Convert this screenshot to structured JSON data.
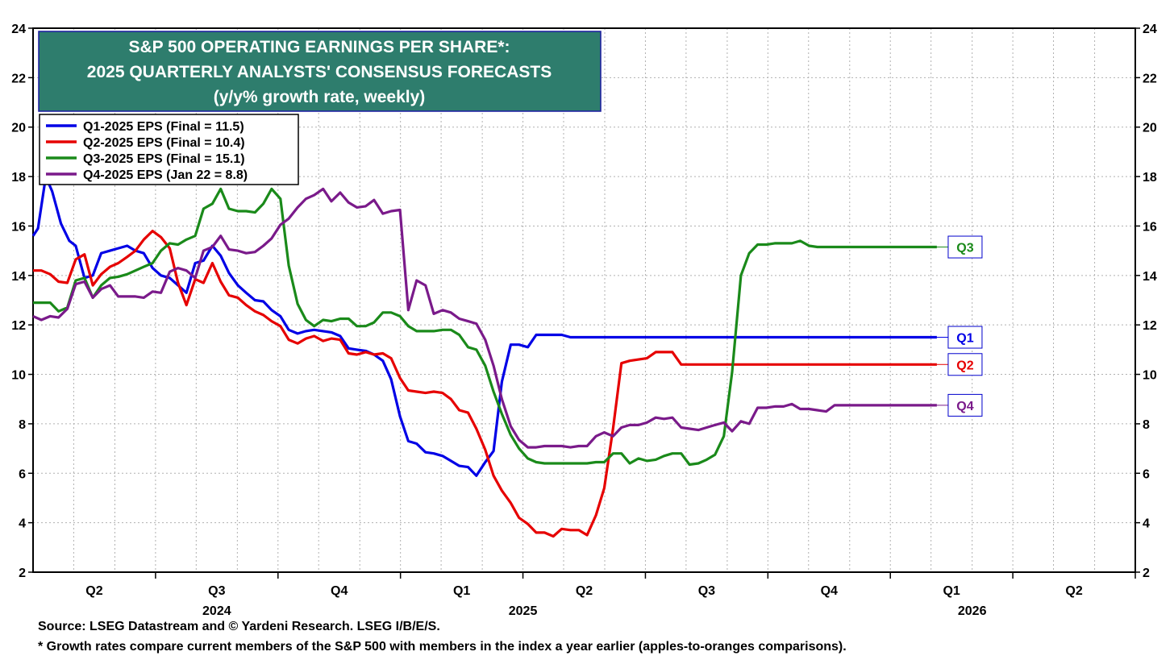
{
  "chart_data": {
    "type": "line",
    "title_lines": [
      "S&P 500 OPERATING EARNINGS PER SHARE*:",
      "2025 QUARTERLY ANALYSTS' CONSENSUS FORECASTS",
      "(y/y% growth rate, weekly)"
    ],
    "ylim": [
      2,
      24
    ],
    "yticks": [
      2,
      4,
      6,
      8,
      10,
      12,
      14,
      16,
      18,
      20,
      22,
      24
    ],
    "xlim": [
      2024.0,
      2026.25
    ],
    "x_quarter_labels": [
      {
        "label": "Q2",
        "x": 2024.125
      },
      {
        "label": "Q3",
        "x": 2024.375
      },
      {
        "label": "Q4",
        "x": 2024.625
      },
      {
        "label": "Q1",
        "x": 2024.875
      },
      {
        "label": "Q2",
        "x": 2025.125
      },
      {
        "label": "Q3",
        "x": 2025.375
      },
      {
        "label": "Q4",
        "x": 2025.625
      },
      {
        "label": "Q1",
        "x": 2025.875
      },
      {
        "label": "Q2",
        "x": 2026.125
      }
    ],
    "x_year_labels": [
      {
        "label": "2024",
        "x": 2024.375
      },
      {
        "label": "2025",
        "x": 2025.0
      },
      {
        "label": "2026",
        "x": 2025.917
      }
    ],
    "x_quarter_ticks": [
      2024.25,
      2024.5,
      2024.75,
      2025.0,
      2025.25,
      2025.5,
      2025.75,
      2026.0,
      2026.25
    ],
    "x_month_grid": [
      2024.083,
      2024.167,
      2024.333,
      2024.417,
      2024.583,
      2024.667,
      2024.833,
      2024.917,
      2025.083,
      2025.167,
      2025.333,
      2025.417,
      2025.583,
      2025.667,
      2025.833,
      2025.917,
      2026.083,
      2026.167
    ],
    "series": [
      {
        "name": "Q1-2025 EPS (Final = 11.5)",
        "short": "Q1",
        "color": "#0000e6",
        "x": [
          2024.0,
          2024.01,
          2024.026,
          2024.039,
          2024.057,
          2024.074,
          2024.087,
          2024.105,
          2024.122,
          2024.139,
          2024.157,
          2024.174,
          2024.192,
          2024.209,
          2024.226,
          2024.244,
          2024.261,
          2024.279,
          2024.296,
          2024.313,
          2024.331,
          2024.348,
          2024.366,
          2024.383,
          2024.4,
          2024.418,
          2024.435,
          2024.453,
          2024.47,
          2024.487,
          2024.505,
          2024.522,
          2024.54,
          2024.557,
          2024.574,
          2024.592,
          2024.609,
          2024.627,
          2024.644,
          2024.661,
          2024.679,
          2024.696,
          2024.714,
          2024.731,
          2024.749,
          2024.766,
          2024.783,
          2024.801,
          2024.818,
          2024.836,
          2024.853,
          2024.87,
          2024.888,
          2024.905,
          2024.923,
          2024.94,
          2024.957,
          2024.975,
          2024.992,
          2025.01,
          2025.027,
          2025.044,
          2025.062,
          2025.079,
          2025.097,
          2025.114,
          2025.131,
          2025.149,
          2025.166,
          2025.184,
          2025.201,
          2025.218,
          2025.236,
          2025.253,
          2025.271,
          2025.288,
          2025.305,
          2025.323,
          2025.34,
          2025.358,
          2025.375,
          2025.392,
          2025.41,
          2025.427,
          2025.445,
          2025.462,
          2025.479,
          2025.497,
          2025.514,
          2025.532,
          2025.549,
          2025.566,
          2025.584,
          2025.601,
          2025.619,
          2025.636,
          2025.653,
          2025.671,
          2025.688,
          2025.706,
          2025.723,
          2025.74,
          2025.758,
          2025.775,
          2025.793,
          2025.81,
          2025.827,
          2025.845
        ],
        "values": [
          15.6,
          15.9,
          18.0,
          17.4,
          16.1,
          15.4,
          15.2,
          13.9,
          14.0,
          14.9,
          15.0,
          15.1,
          15.2,
          15.0,
          14.9,
          14.3,
          14.0,
          13.9,
          13.6,
          13.3,
          14.5,
          14.6,
          15.2,
          14.8,
          14.1,
          13.6,
          13.3,
          13.0,
          12.95,
          12.6,
          12.35,
          11.8,
          11.65,
          11.75,
          11.8,
          11.75,
          11.7,
          11.55,
          11.05,
          11.0,
          10.95,
          10.8,
          10.55,
          9.8,
          8.3,
          7.3,
          7.2,
          6.85,
          6.8,
          6.7,
          6.5,
          6.3,
          6.25,
          5.9,
          6.45,
          6.9,
          9.7,
          11.2,
          11.2,
          11.1,
          11.6,
          11.6,
          11.6,
          11.6,
          11.5,
          11.5,
          11.5,
          11.5,
          11.5,
          11.5,
          11.5,
          11.5,
          11.5,
          11.5,
          11.5,
          11.5,
          11.5,
          11.5,
          11.5,
          11.5,
          11.5,
          11.5,
          11.5,
          11.5,
          11.5,
          11.5,
          11.5,
          11.5,
          11.5,
          11.5,
          11.5,
          11.5,
          11.5,
          11.5,
          11.5,
          11.5,
          11.5,
          11.5,
          11.5,
          11.5,
          11.5,
          11.5,
          11.5,
          11.5,
          11.5,
          11.5,
          11.5,
          11.5
        ]
      },
      {
        "name": "Q2-2025 EPS (Final = 10.4)",
        "short": "Q2",
        "color": "#e60000",
        "x": [
          2024.0,
          2024.017,
          2024.035,
          2024.052,
          2024.07,
          2024.087,
          2024.105,
          2024.122,
          2024.139,
          2024.157,
          2024.174,
          2024.192,
          2024.209,
          2024.226,
          2024.244,
          2024.261,
          2024.279,
          2024.296,
          2024.313,
          2024.331,
          2024.348,
          2024.366,
          2024.383,
          2024.4,
          2024.418,
          2024.435,
          2024.453,
          2024.47,
          2024.487,
          2024.505,
          2024.522,
          2024.54,
          2024.557,
          2024.574,
          2024.592,
          2024.609,
          2024.627,
          2024.644,
          2024.661,
          2024.679,
          2024.696,
          2024.714,
          2024.731,
          2024.749,
          2024.766,
          2024.783,
          2024.801,
          2024.818,
          2024.836,
          2024.853,
          2024.87,
          2024.888,
          2024.905,
          2024.923,
          2024.94,
          2024.957,
          2024.975,
          2024.992,
          2025.01,
          2025.027,
          2025.044,
          2025.062,
          2025.079,
          2025.097,
          2025.114,
          2025.131,
          2025.149,
          2025.166,
          2025.184,
          2025.201,
          2025.218,
          2025.236,
          2025.253,
          2025.271,
          2025.288,
          2025.305,
          2025.323,
          2025.34,
          2025.358,
          2025.375,
          2025.392,
          2025.41,
          2025.427,
          2025.445,
          2025.462,
          2025.479,
          2025.497,
          2025.514,
          2025.532,
          2025.549,
          2025.566,
          2025.584,
          2025.601,
          2025.619,
          2025.636,
          2025.653,
          2025.671,
          2025.688,
          2025.706,
          2025.723,
          2025.74,
          2025.758,
          2025.775,
          2025.793,
          2025.81,
          2025.827,
          2025.845
        ],
        "values": [
          14.2,
          14.2,
          14.05,
          13.75,
          13.7,
          14.65,
          14.85,
          13.6,
          14.05,
          14.35,
          14.5,
          14.75,
          15.0,
          15.45,
          15.8,
          15.55,
          15.1,
          13.7,
          12.8,
          13.85,
          13.7,
          14.5,
          13.75,
          13.2,
          13.1,
          12.8,
          12.55,
          12.4,
          12.15,
          11.95,
          11.4,
          11.25,
          11.45,
          11.55,
          11.35,
          11.45,
          11.4,
          10.85,
          10.8,
          10.9,
          10.8,
          10.85,
          10.65,
          9.85,
          9.35,
          9.3,
          9.25,
          9.3,
          9.25,
          9.0,
          8.55,
          8.45,
          7.8,
          6.95,
          5.9,
          5.3,
          4.8,
          4.2,
          3.95,
          3.6,
          3.6,
          3.45,
          3.75,
          3.7,
          3.7,
          3.5,
          4.3,
          5.4,
          7.8,
          10.45,
          10.55,
          10.6,
          10.65,
          10.9,
          10.9,
          10.9,
          10.4,
          10.4,
          10.4,
          10.4,
          10.4,
          10.4,
          10.4,
          10.4,
          10.4,
          10.4,
          10.4,
          10.4,
          10.4,
          10.4,
          10.4,
          10.4,
          10.4,
          10.4,
          10.4,
          10.4,
          10.4,
          10.4,
          10.4,
          10.4,
          10.4,
          10.4,
          10.4,
          10.4,
          10.4,
          10.4,
          10.4
        ]
      },
      {
        "name": "Q3-2025 EPS (Final = 15.1)",
        "short": "Q3",
        "color": "#1a8a1a",
        "x": [
          2024.0,
          2024.017,
          2024.035,
          2024.052,
          2024.07,
          2024.087,
          2024.105,
          2024.122,
          2024.139,
          2024.157,
          2024.174,
          2024.192,
          2024.209,
          2024.226,
          2024.244,
          2024.261,
          2024.279,
          2024.296,
          2024.313,
          2024.331,
          2024.348,
          2024.366,
          2024.383,
          2024.4,
          2024.418,
          2024.435,
          2024.453,
          2024.47,
          2024.487,
          2024.505,
          2024.522,
          2024.54,
          2024.557,
          2024.574,
          2024.592,
          2024.609,
          2024.627,
          2024.644,
          2024.661,
          2024.679,
          2024.696,
          2024.714,
          2024.731,
          2024.749,
          2024.766,
          2024.783,
          2024.801,
          2024.818,
          2024.836,
          2024.853,
          2024.87,
          2024.888,
          2024.905,
          2024.923,
          2024.94,
          2024.957,
          2024.975,
          2024.992,
          2025.01,
          2025.027,
          2025.044,
          2025.062,
          2025.079,
          2025.097,
          2025.114,
          2025.131,
          2025.149,
          2025.166,
          2025.184,
          2025.201,
          2025.218,
          2025.236,
          2025.253,
          2025.271,
          2025.288,
          2025.305,
          2025.323,
          2025.34,
          2025.358,
          2025.375,
          2025.392,
          2025.41,
          2025.427,
          2025.445,
          2025.462,
          2025.479,
          2025.497,
          2025.514,
          2025.532,
          2025.549,
          2025.566,
          2025.584,
          2025.601,
          2025.619,
          2025.636,
          2025.653,
          2025.671,
          2025.688,
          2025.706,
          2025.723,
          2025.74,
          2025.758,
          2025.775,
          2025.793,
          2025.81,
          2025.827,
          2025.845
        ],
        "values": [
          12.9,
          12.9,
          12.9,
          12.55,
          12.7,
          13.8,
          13.9,
          13.1,
          13.6,
          13.9,
          13.95,
          14.05,
          14.2,
          14.35,
          14.5,
          15.0,
          15.3,
          15.25,
          15.45,
          15.6,
          16.7,
          16.9,
          17.5,
          16.7,
          16.6,
          16.6,
          16.55,
          16.9,
          17.5,
          17.1,
          14.4,
          12.85,
          12.2,
          11.95,
          12.2,
          12.15,
          12.25,
          12.25,
          11.95,
          11.95,
          12.1,
          12.5,
          12.5,
          12.35,
          11.95,
          11.75,
          11.75,
          11.75,
          11.8,
          11.8,
          11.6,
          11.1,
          11.0,
          10.35,
          9.3,
          8.4,
          7.55,
          7.0,
          6.6,
          6.45,
          6.4,
          6.4,
          6.4,
          6.4,
          6.4,
          6.4,
          6.45,
          6.45,
          6.8,
          6.8,
          6.4,
          6.6,
          6.5,
          6.55,
          6.7,
          6.8,
          6.8,
          6.35,
          6.4,
          6.55,
          6.75,
          7.5,
          10.1,
          14.0,
          14.9,
          15.25,
          15.25,
          15.3,
          15.3,
          15.3,
          15.4,
          15.2,
          15.15,
          15.15,
          15.15,
          15.15,
          15.15,
          15.15,
          15.15,
          15.15,
          15.15,
          15.15,
          15.15,
          15.15,
          15.15,
          15.15,
          15.15
        ]
      },
      {
        "name": "Q4-2025 EPS (Jan 22 = 8.8)",
        "short": "Q4",
        "color": "#7a1a8a",
        "x": [
          2024.0,
          2024.017,
          2024.035,
          2024.052,
          2024.07,
          2024.087,
          2024.105,
          2024.122,
          2024.139,
          2024.157,
          2024.174,
          2024.192,
          2024.209,
          2024.226,
          2024.244,
          2024.261,
          2024.279,
          2024.296,
          2024.313,
          2024.331,
          2024.348,
          2024.366,
          2024.383,
          2024.4,
          2024.418,
          2024.435,
          2024.453,
          2024.47,
          2024.487,
          2024.505,
          2024.522,
          2024.54,
          2024.557,
          2024.574,
          2024.592,
          2024.609,
          2024.627,
          2024.644,
          2024.661,
          2024.679,
          2024.696,
          2024.714,
          2024.731,
          2024.749,
          2024.766,
          2024.783,
          2024.801,
          2024.818,
          2024.836,
          2024.853,
          2024.87,
          2024.888,
          2024.905,
          2024.923,
          2024.94,
          2024.957,
          2024.975,
          2024.992,
          2025.01,
          2025.027,
          2025.044,
          2025.062,
          2025.079,
          2025.097,
          2025.114,
          2025.131,
          2025.149,
          2025.166,
          2025.184,
          2025.201,
          2025.218,
          2025.236,
          2025.253,
          2025.271,
          2025.288,
          2025.305,
          2025.323,
          2025.34,
          2025.358,
          2025.375,
          2025.392,
          2025.41,
          2025.427,
          2025.445,
          2025.462,
          2025.479,
          2025.497,
          2025.514,
          2025.532,
          2025.549,
          2025.566,
          2025.584,
          2025.601,
          2025.619,
          2025.636,
          2025.653,
          2025.671,
          2025.688,
          2025.706,
          2025.723,
          2025.74,
          2025.758,
          2025.775,
          2025.793,
          2025.81,
          2025.827,
          2025.845
        ],
        "values": [
          12.35,
          12.2,
          12.35,
          12.3,
          12.65,
          13.65,
          13.75,
          13.1,
          13.45,
          13.6,
          13.15,
          13.15,
          13.15,
          13.1,
          13.35,
          13.3,
          14.15,
          14.3,
          14.2,
          13.9,
          15.0,
          15.15,
          15.6,
          15.05,
          15.0,
          14.9,
          14.95,
          15.2,
          15.5,
          16.05,
          16.3,
          16.75,
          17.1,
          17.25,
          17.5,
          17.0,
          17.35,
          16.95,
          16.75,
          16.8,
          17.05,
          16.5,
          16.6,
          16.65,
          12.6,
          13.8,
          13.6,
          12.45,
          12.6,
          12.5,
          12.25,
          12.15,
          12.05,
          11.4,
          10.35,
          9.0,
          7.9,
          7.35,
          7.05,
          7.05,
          7.1,
          7.1,
          7.1,
          7.05,
          7.1,
          7.1,
          7.5,
          7.65,
          7.5,
          7.85,
          7.95,
          7.95,
          8.05,
          8.25,
          8.2,
          8.25,
          7.85,
          7.8,
          7.75,
          7.85,
          7.95,
          8.05,
          7.7,
          8.1,
          8.0,
          8.65,
          8.65,
          8.7,
          8.7,
          8.8,
          8.6,
          8.6,
          8.55,
          8.5,
          8.75,
          8.75,
          8.75,
          8.75,
          8.75,
          8.75,
          8.75,
          8.75,
          8.75,
          8.75,
          8.75,
          8.75,
          8.75
        ]
      }
    ],
    "footnotes": [
      "Source: LSEG Datastream and © Yardeni Research. LSEG I/B/E/S.",
      "* Growth rates compare current members of the S&P 500 with members in the index a year earlier (apples-to-oranges comparisons)."
    ],
    "title_box_color": "#2e7d6d"
  }
}
